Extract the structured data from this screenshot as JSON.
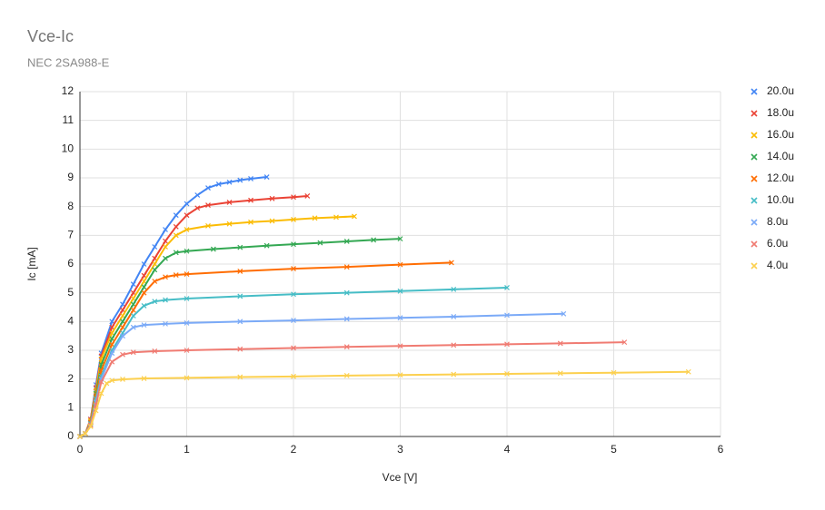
{
  "chart_data": {
    "type": "line",
    "title": "Vce-Ic",
    "subtitle": "NEC 2SA988-E",
    "x_label": "Vce [V]",
    "y_label": "Ic [mA]",
    "xlim": [
      0,
      6
    ],
    "xticks": [
      0,
      1,
      2,
      3,
      4,
      5,
      6
    ],
    "ylim": [
      0,
      12
    ],
    "yticks": [
      0,
      1,
      2,
      3,
      4,
      5,
      6,
      7,
      8,
      9,
      10,
      11,
      12
    ],
    "grid": true,
    "legend": "right",
    "marker": "x",
    "series": [
      {
        "name": "20.0u",
        "color": "#4285f4",
        "x": [
          0,
          0.05,
          0.1,
          0.15,
          0.2,
          0.3,
          0.4,
          0.5,
          0.6,
          0.7,
          0.8,
          0.9,
          1.0,
          1.1,
          1.2,
          1.3,
          1.4,
          1.5,
          1.6,
          1.75
        ],
        "values": [
          0,
          0.1,
          0.6,
          1.8,
          2.9,
          4.0,
          4.6,
          5.3,
          6.0,
          6.6,
          7.2,
          7.7,
          8.1,
          8.4,
          8.65,
          8.78,
          8.85,
          8.92,
          8.97,
          9.03
        ]
      },
      {
        "name": "18.0u",
        "color": "#ea4335",
        "x": [
          0,
          0.05,
          0.1,
          0.15,
          0.2,
          0.3,
          0.4,
          0.5,
          0.6,
          0.7,
          0.8,
          0.9,
          1.0,
          1.1,
          1.2,
          1.4,
          1.6,
          1.8,
          2.0,
          2.13
        ],
        "values": [
          0,
          0.1,
          0.6,
          1.7,
          2.8,
          3.8,
          4.4,
          5.0,
          5.6,
          6.2,
          6.8,
          7.3,
          7.7,
          7.95,
          8.05,
          8.15,
          8.22,
          8.28,
          8.33,
          8.37
        ]
      },
      {
        "name": "16.0u",
        "color": "#fbbc04",
        "x": [
          0,
          0.05,
          0.1,
          0.15,
          0.2,
          0.3,
          0.4,
          0.5,
          0.6,
          0.7,
          0.8,
          0.9,
          1.0,
          1.2,
          1.4,
          1.6,
          1.8,
          2.0,
          2.2,
          2.4,
          2.57
        ],
        "values": [
          0,
          0.1,
          0.55,
          1.6,
          2.7,
          3.6,
          4.2,
          4.8,
          5.4,
          6.0,
          6.6,
          7.0,
          7.2,
          7.33,
          7.4,
          7.46,
          7.5,
          7.55,
          7.6,
          7.63,
          7.66
        ]
      },
      {
        "name": "14.0u",
        "color": "#34a853",
        "x": [
          0,
          0.05,
          0.1,
          0.15,
          0.2,
          0.3,
          0.4,
          0.5,
          0.6,
          0.7,
          0.8,
          0.9,
          1.0,
          1.25,
          1.5,
          1.75,
          2.0,
          2.25,
          2.5,
          2.75,
          3.0
        ],
        "values": [
          0,
          0.1,
          0.5,
          1.5,
          2.5,
          3.4,
          4.0,
          4.6,
          5.2,
          5.8,
          6.2,
          6.4,
          6.45,
          6.52,
          6.58,
          6.64,
          6.69,
          6.74,
          6.79,
          6.84,
          6.88
        ]
      },
      {
        "name": "12.0u",
        "color": "#ff6d01",
        "x": [
          0,
          0.05,
          0.1,
          0.15,
          0.2,
          0.3,
          0.4,
          0.5,
          0.6,
          0.7,
          0.8,
          0.9,
          1.0,
          1.5,
          2.0,
          2.5,
          3.0,
          3.48
        ],
        "values": [
          0,
          0.1,
          0.5,
          1.4,
          2.3,
          3.2,
          3.8,
          4.4,
          5.0,
          5.4,
          5.55,
          5.62,
          5.65,
          5.75,
          5.84,
          5.9,
          5.98,
          6.05
        ]
      },
      {
        "name": "10.0u",
        "color": "#46bdc6",
        "x": [
          0,
          0.05,
          0.1,
          0.15,
          0.2,
          0.3,
          0.4,
          0.5,
          0.6,
          0.7,
          0.8,
          1.0,
          1.5,
          2.0,
          2.5,
          3.0,
          3.5,
          4.0
        ],
        "values": [
          0,
          0.1,
          0.45,
          1.3,
          2.1,
          3.0,
          3.6,
          4.2,
          4.55,
          4.7,
          4.75,
          4.8,
          4.88,
          4.95,
          5.0,
          5.06,
          5.12,
          5.18
        ]
      },
      {
        "name": "8.0u",
        "color": "#7baaf7",
        "x": [
          0,
          0.05,
          0.1,
          0.15,
          0.2,
          0.3,
          0.4,
          0.5,
          0.6,
          0.8,
          1.0,
          1.5,
          2.0,
          2.5,
          3.0,
          3.5,
          4.0,
          4.53
        ],
        "values": [
          0,
          0.1,
          0.4,
          1.2,
          2.0,
          2.9,
          3.5,
          3.8,
          3.88,
          3.92,
          3.95,
          4.0,
          4.04,
          4.09,
          4.13,
          4.17,
          4.22,
          4.27
        ]
      },
      {
        "name": "6.0u",
        "color": "#f07b72",
        "x": [
          0,
          0.05,
          0.1,
          0.15,
          0.2,
          0.3,
          0.4,
          0.5,
          0.7,
          1.0,
          1.5,
          2.0,
          2.5,
          3.0,
          3.5,
          4.0,
          4.5,
          5.1
        ],
        "values": [
          0,
          0.1,
          0.4,
          1.1,
          1.9,
          2.6,
          2.85,
          2.93,
          2.97,
          3.0,
          3.04,
          3.08,
          3.12,
          3.15,
          3.18,
          3.21,
          3.24,
          3.28
        ]
      },
      {
        "name": "4.0u",
        "color": "#fcd04f",
        "x": [
          0,
          0.05,
          0.1,
          0.15,
          0.2,
          0.25,
          0.3,
          0.4,
          0.6,
          1.0,
          1.5,
          2.0,
          2.5,
          3.0,
          3.5,
          4.0,
          4.5,
          5.0,
          5.7
        ],
        "values": [
          0,
          0.1,
          0.35,
          0.9,
          1.5,
          1.85,
          1.95,
          1.99,
          2.02,
          2.04,
          2.07,
          2.09,
          2.12,
          2.14,
          2.16,
          2.18,
          2.2,
          2.22,
          2.25
        ]
      }
    ]
  }
}
